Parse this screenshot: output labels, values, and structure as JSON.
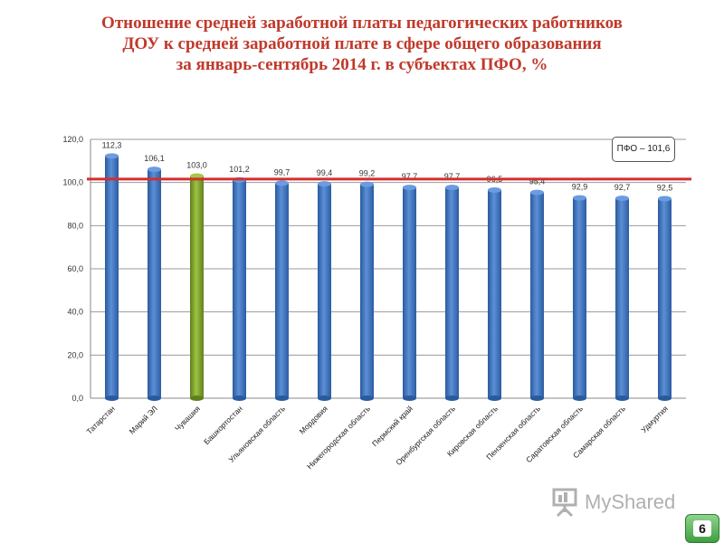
{
  "title_lines": [
    "Отношение средней заработной платы педагогических работников",
    "ДОУ к средней заработной плате в сфере общего образования",
    "за январь-сентябрь 2014 г. в субъектах ПФО, %"
  ],
  "colors": {
    "title": "#c0392b",
    "bar": "#3a6fb8",
    "bar_highlight": "#7a9d2e",
    "reference_line": "#d32f2f"
  },
  "chart_data": {
    "type": "bar",
    "title": "Отношение средней заработной платы педагогических работников ДОУ к средней заработной плате в сфере общего образования за январь-сентябрь 2014 г. в субъектах ПФО, %",
    "categories": [
      "Татарстан",
      "Марий ЭЛ",
      "Чувашия",
      "Башкортостан",
      "Ульяновская область",
      "Мордовия",
      "Нижегородская область",
      "Пермский край",
      "Оренбургская область",
      "Кировская область",
      "Пензенская область",
      "Саратовская область",
      "Самарская область",
      "Удмуртия"
    ],
    "values": [
      112.3,
      106.1,
      103.0,
      101.2,
      99.7,
      99.4,
      99.2,
      97.7,
      97.7,
      96.5,
      95.4,
      92.9,
      92.7,
      92.5
    ],
    "value_labels": [
      "112,3",
      "106,1",
      "103,0",
      "101,2",
      "99,7",
      "99,4",
      "99,2",
      "97,7",
      "97,7",
      "96,5",
      "95,4",
      "92,9",
      "92,7",
      "92,5"
    ],
    "highlight_index": 2,
    "ylim": [
      0,
      120
    ],
    "yticks": [
      0,
      20,
      40,
      60,
      80,
      100,
      120
    ],
    "ytick_labels": [
      "0,0",
      "20,0",
      "40,0",
      "60,0",
      "80,0",
      "100,0",
      "120,0"
    ],
    "grid": true,
    "reference": {
      "value": 101.6,
      "label": "ПФО – 101,6"
    },
    "xlabel": "",
    "ylabel": ""
  },
  "watermark": {
    "text": "MyShared",
    "icon": "presentation-board-icon"
  },
  "page_number": "6"
}
